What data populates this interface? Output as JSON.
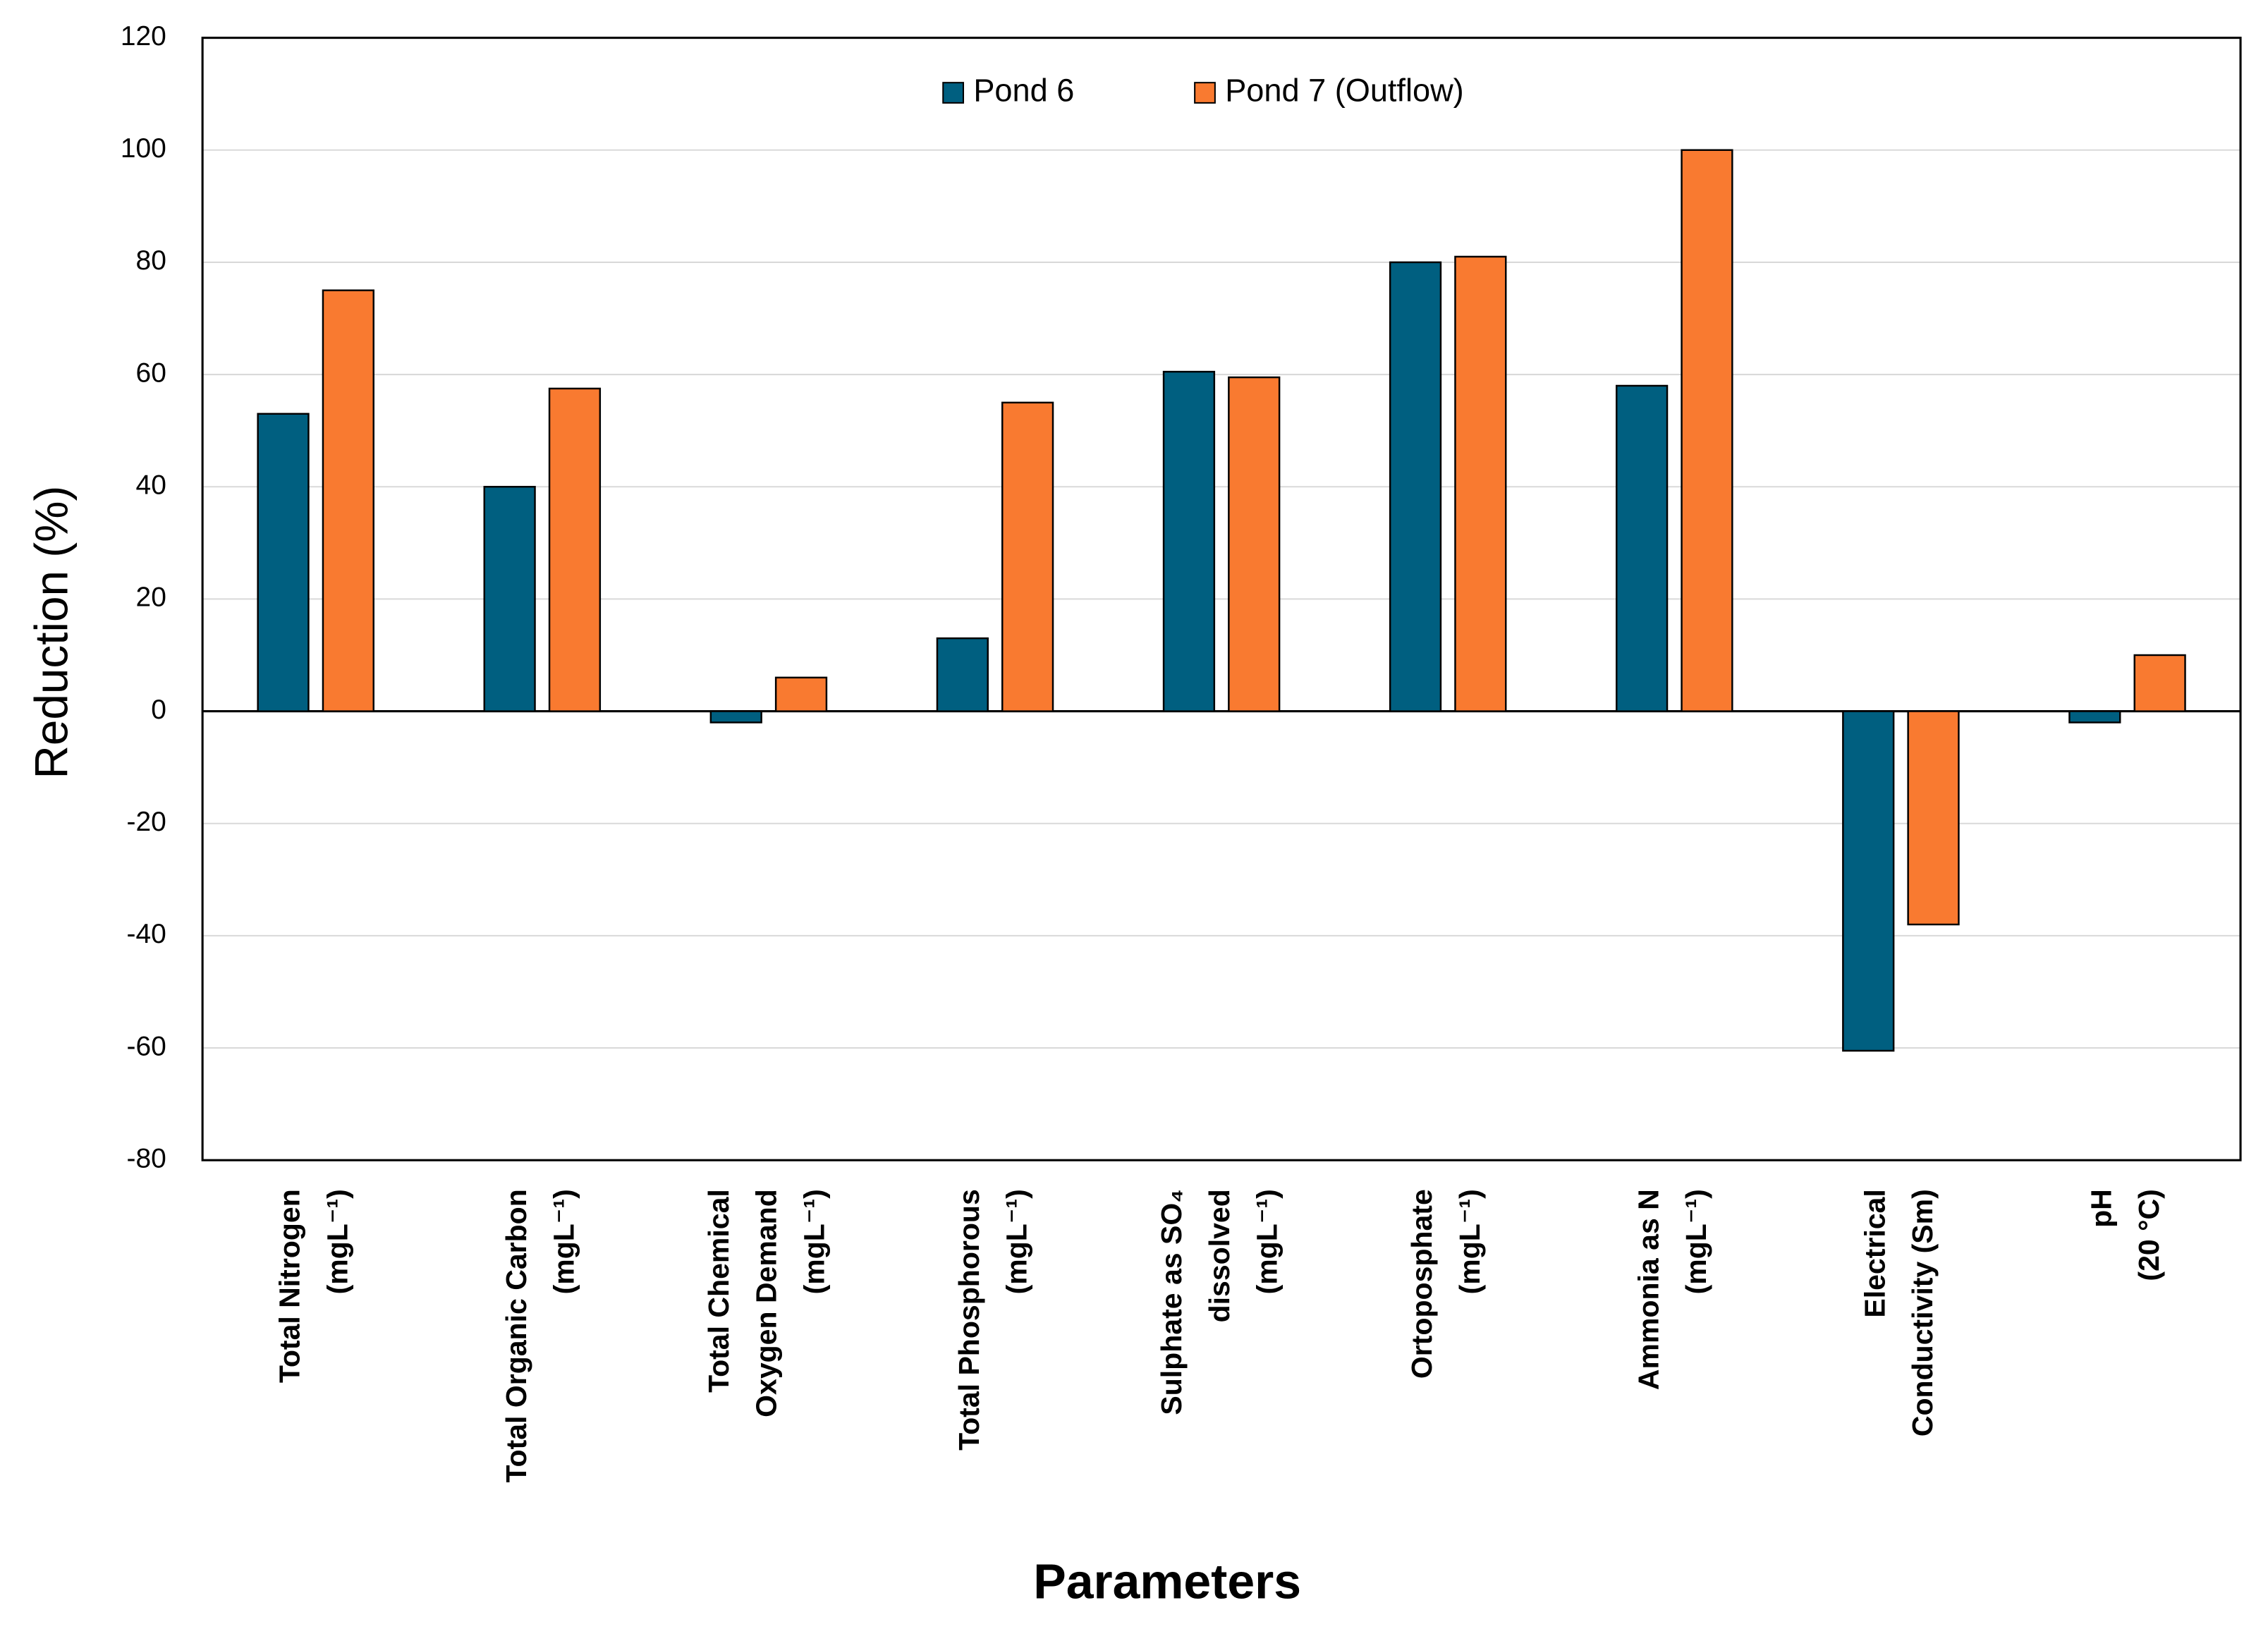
{
  "chart_data": {
    "type": "bar",
    "x_label": "Parameters",
    "y_label": "Reduction (%)",
    "categories": [
      [
        "Total Nitrogen",
        "(mgL⁻¹)"
      ],
      [
        "Total Organic Carbon",
        "(mgL⁻¹)"
      ],
      [
        "Total Chemical",
        "Oxygen Demand",
        "(mgL⁻¹)"
      ],
      [
        "Total Phosphorous",
        "(mgL⁻¹)"
      ],
      [
        "Sulphate as SO₄",
        "dissolved",
        "(mgL⁻¹)"
      ],
      [
        "Ortoposphate",
        "(mgL⁻¹)"
      ],
      [
        "Ammonia as N",
        "(mgL⁻¹)"
      ],
      [
        "Electrical",
        "Conductivity (Sm)"
      ],
      [
        "pH",
        "(20 °C)"
      ]
    ],
    "series": [
      {
        "name": "Pond 6",
        "color": "#005f80",
        "values": [
          53,
          40,
          -2,
          13,
          60.5,
          80,
          58,
          -60.5,
          -2
        ]
      },
      {
        "name": "Pond 7 (Outflow)",
        "color": "#f97a30",
        "values": [
          75,
          57.5,
          6,
          55,
          59.5,
          81,
          100,
          -38,
          10
        ]
      }
    ],
    "ylim": [
      -80,
      120
    ],
    "yticks": [
      -80,
      -60,
      -40,
      -20,
      0,
      20,
      40,
      60,
      80,
      100,
      120
    ],
    "grid": true,
    "legend": "top"
  }
}
